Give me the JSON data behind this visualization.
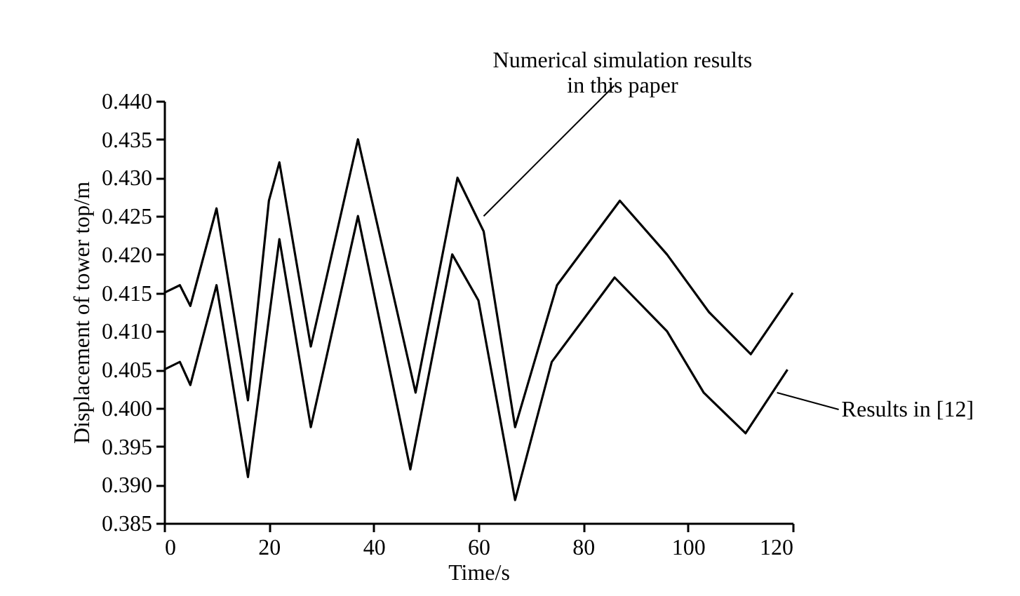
{
  "chart_data": {
    "type": "line",
    "xlabel": "Time/s",
    "ylabel": "Displacement of tower top/m",
    "xlim": [
      0,
      120
    ],
    "xticks": [
      0,
      20,
      40,
      60,
      80,
      100,
      120
    ],
    "ylim": [
      0.385,
      0.44
    ],
    "yticks": [
      {
        "value": 0.385,
        "label": "0.385"
      },
      {
        "value": 0.39,
        "label": "0.390"
      },
      {
        "value": 0.395,
        "label": "0.395"
      },
      {
        "value": 0.4,
        "label": "0.400"
      },
      {
        "value": 0.405,
        "label": "0.405"
      },
      {
        "value": 0.41,
        "label": "0.410"
      },
      {
        "value": 0.415,
        "label": "0.415"
      },
      {
        "value": 0.42,
        "label": "0.420"
      },
      {
        "value": 0.425,
        "label": "0.425"
      },
      {
        "value": 0.43,
        "label": "0.430"
      },
      {
        "value": 0.435,
        "label": "0.435"
      },
      {
        "value": 0.44,
        "label": "0.440"
      }
    ],
    "marker": "none",
    "line_style": "solid",
    "series": [
      {
        "color": "#000000",
        "x": [
          0,
          3,
          5,
          10,
          16,
          20,
          22,
          28,
          37,
          48,
          56,
          61,
          67,
          75,
          87,
          96,
          104,
          112,
          120
        ],
        "values": [
          0.415,
          0.416,
          0.4133,
          0.426,
          0.401,
          0.427,
          0.432,
          0.408,
          0.435,
          0.402,
          0.43,
          0.423,
          0.3975,
          0.416,
          0.427,
          0.42,
          0.4125,
          0.407,
          0.415
        ]
      },
      {
        "color": "#000000",
        "x": [
          0,
          3,
          5,
          10,
          16,
          22,
          28,
          37,
          47,
          55,
          60,
          67,
          74,
          86,
          96,
          103,
          111,
          119
        ],
        "values": [
          0.405,
          0.406,
          0.403,
          0.416,
          0.391,
          0.422,
          0.3975,
          0.425,
          0.392,
          0.42,
          0.414,
          0.388,
          0.406,
          0.417,
          0.41,
          0.402,
          0.3967,
          0.405
        ]
      }
    ],
    "annotations": [
      {
        "text": "Numerical simulation results\n        in this paper",
        "x": 61,
        "y": 0.425
      },
      {
        "text": "Results in  [12]",
        "x": 117,
        "y": 0.402
      }
    ]
  }
}
